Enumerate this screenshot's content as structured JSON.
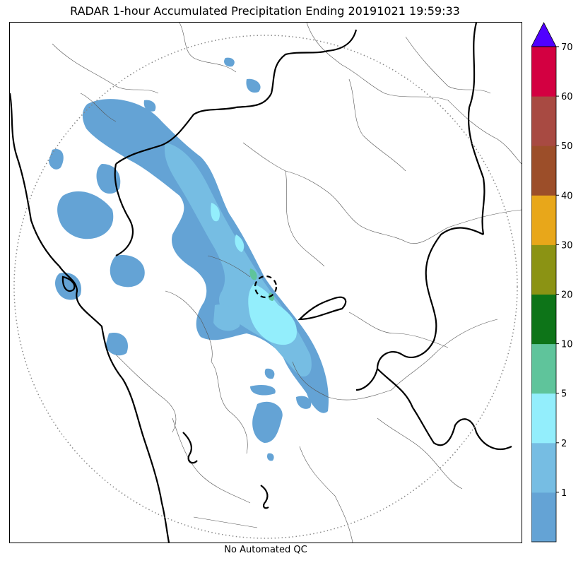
{
  "title": "RADAR 1-hour Accumulated Precipitation Ending 20191021 19:59:33",
  "qc_note": "No Automated QC",
  "colorbar": {
    "bins": [
      {
        "label": "",
        "color": "#64a3d5"
      },
      {
        "label": "1",
        "color": "#76bde3"
      },
      {
        "label": "2",
        "color": "#93eefc"
      },
      {
        "label": "5",
        "color": "#5fc49b"
      },
      {
        "label": "10",
        "color": "#0d7418"
      },
      {
        "label": "20",
        "color": "#8b9314"
      },
      {
        "label": "30",
        "color": "#e8a71a"
      },
      {
        "label": "40",
        "color": "#9c4e29"
      },
      {
        "label": "50",
        "color": "#a84a42"
      },
      {
        "label": "60",
        "color": "#d30041"
      },
      {
        "label": "70",
        "color": "#5000ff"
      }
    ],
    "extend_color": "#5000ff"
  },
  "map": {
    "range_ring": "dotted",
    "radar_site_marker": "dashed-circle",
    "precip_colors": {
      "light": "#64a3d5",
      "moderate": "#76bde3",
      "heavy": "#93eefc",
      "intense": "#5fc49b"
    }
  }
}
